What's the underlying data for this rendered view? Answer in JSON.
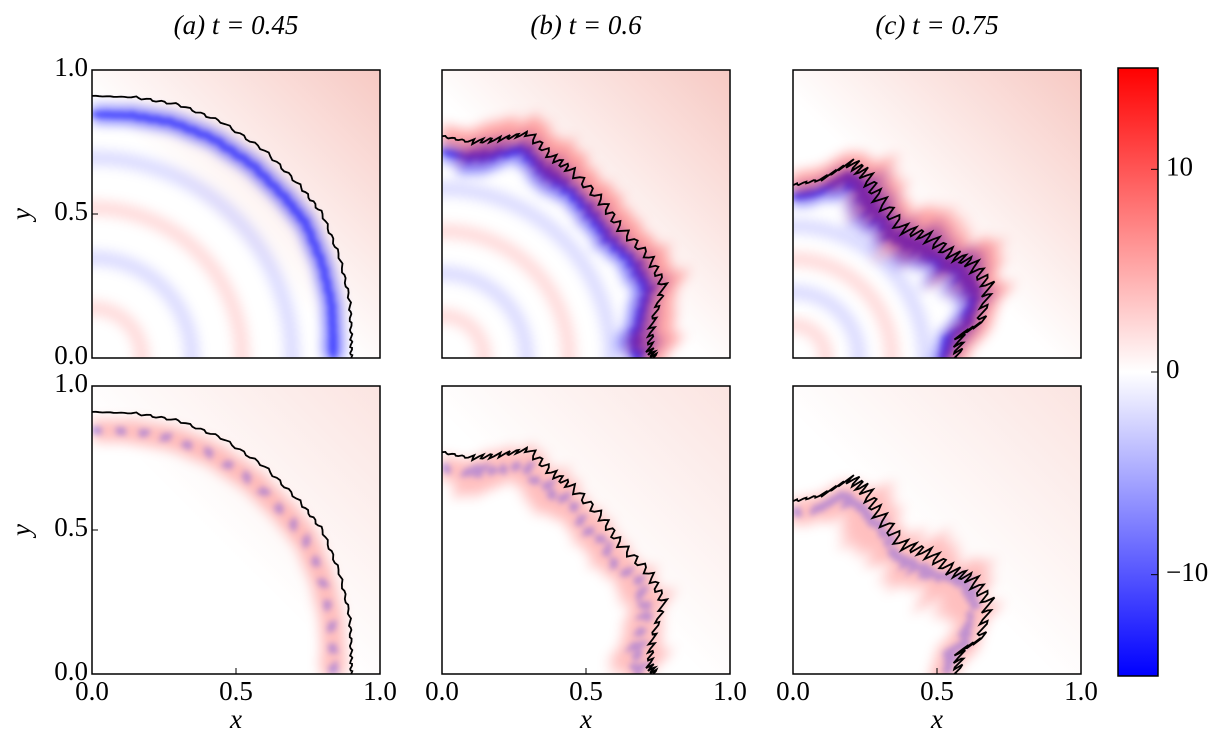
{
  "chart_data": [
    {
      "type": "heatmap",
      "title": "(a) t = 0.45",
      "xlim": [
        0,
        1
      ],
      "ylim": [
        0,
        1
      ],
      "ylabel": "y",
      "yticks": [
        {
          "value": 0,
          "label": "0.0"
        },
        {
          "value": 0.5,
          "label": "0.5"
        },
        {
          "value": 1,
          "label": "1.0"
        }
      ]
    },
    {
      "type": "heatmap",
      "title": "(b) t = 0.6",
      "xlim": [
        0,
        1
      ],
      "ylim": [
        0,
        1
      ]
    },
    {
      "type": "heatmap",
      "title": "(c) t = 0.75",
      "xlim": [
        0,
        1
      ],
      "ylim": [
        0,
        1
      ]
    },
    {
      "type": "heatmap",
      "xlim": [
        0,
        1
      ],
      "ylim": [
        0,
        1
      ],
      "xlabel": "x",
      "ylabel": "y",
      "xticks": [
        {
          "value": 0,
          "label": "0.0"
        },
        {
          "value": 0.5,
          "label": "0.5"
        },
        {
          "value": 1,
          "label": "1.0"
        }
      ],
      "yticks": [
        {
          "value": 0,
          "label": "0.0"
        },
        {
          "value": 0.5,
          "label": "0.5"
        },
        {
          "value": 1,
          "label": "1.0"
        }
      ]
    },
    {
      "type": "heatmap",
      "xlim": [
        0,
        1
      ],
      "ylim": [
        0,
        1
      ],
      "xlabel": "x",
      "xticks": [
        {
          "value": 0,
          "label": "0.0"
        },
        {
          "value": 0.5,
          "label": "0.5"
        },
        {
          "value": 1,
          "label": "1.0"
        }
      ]
    },
    {
      "type": "heatmap",
      "xlim": [
        0,
        1
      ],
      "ylim": [
        0,
        1
      ],
      "xlabel": "x",
      "xticks": [
        {
          "value": 0,
          "label": "0.0"
        },
        {
          "value": 0.5,
          "label": "0.5"
        },
        {
          "value": 1,
          "label": "1.0"
        }
      ]
    },
    {
      "type": "colorbar",
      "clim": [
        -15,
        15
      ],
      "colors": [
        "#0000ff",
        "#ffffff",
        "#ff0000"
      ],
      "cticks": [
        {
          "value": 10,
          "label": "10"
        },
        0,
        {
          "value": -10,
          "label": "−10"
        }
      ]
    }
  ]
}
